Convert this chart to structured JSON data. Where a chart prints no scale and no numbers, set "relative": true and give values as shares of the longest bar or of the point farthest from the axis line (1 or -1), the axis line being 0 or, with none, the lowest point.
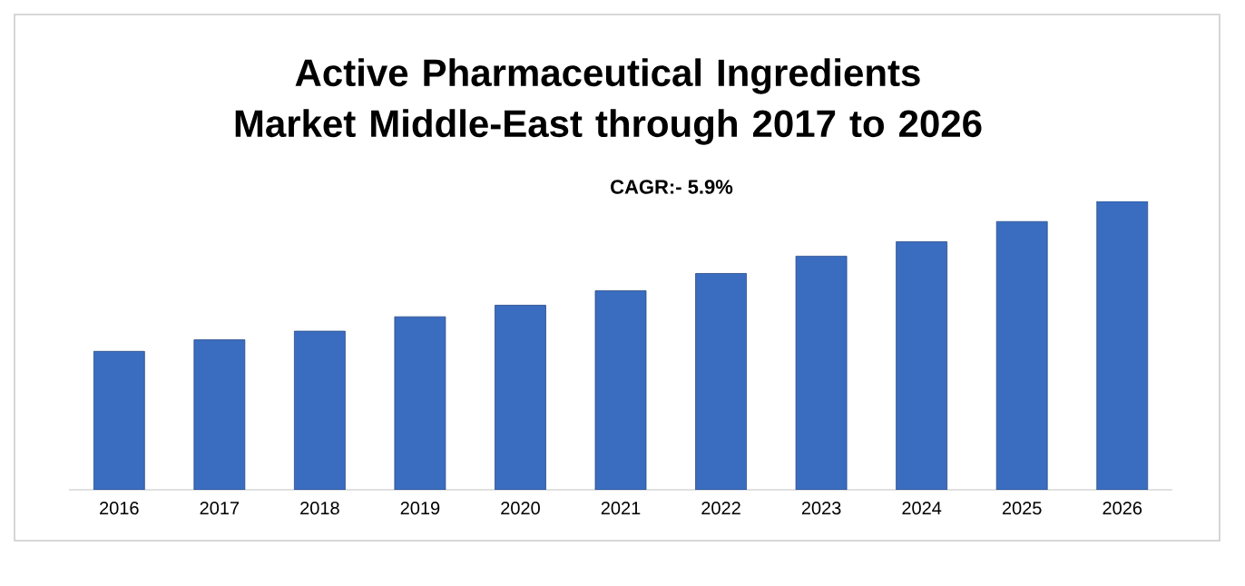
{
  "chart_data": {
    "type": "bar",
    "title": "Active Pharmaceutical Ingredients Market Middle-East through 2017 to 2026",
    "annotations": [
      "CAGR:- 5.9%"
    ],
    "categories": [
      "2016",
      "2017",
      "2018",
      "2019",
      "2020",
      "2021",
      "2022",
      "2023",
      "2024",
      "2025",
      "2026"
    ],
    "values": [
      0.48,
      0.52,
      0.55,
      0.6,
      0.64,
      0.69,
      0.75,
      0.81,
      0.86,
      0.93,
      1
    ],
    "color": "#3a6cc0",
    "relative": true
  }
}
